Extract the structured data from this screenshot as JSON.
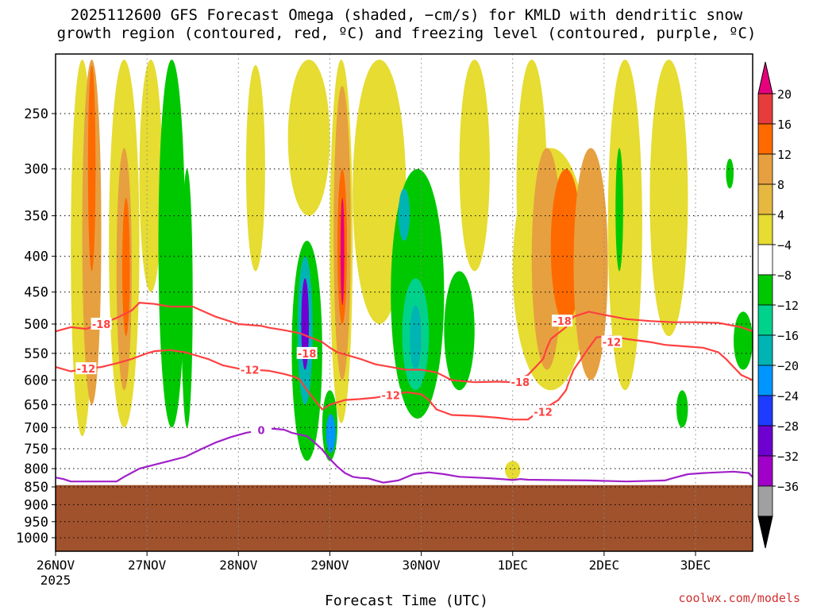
{
  "header": {
    "title_line1": "2025112600 GFS Forecast Omega (shaded, −cm/s) for KMLD with dendritic snow",
    "title_line2": "growth region (contoured, red, ºC) and freezing level (contoured, purple, ºC)"
  },
  "footer": {
    "credit": "coolwx.com/models"
  },
  "chart_data": {
    "type": "heatmap",
    "xlabel": "Forecast Time (UTC)",
    "ylabel": "",
    "xlim": [
      0,
      183
    ],
    "ylim": [
      1050,
      190
    ],
    "x_unit": "hours since 2025-11-26 00 UTC",
    "x_ticks": [
      {
        "hour": 0,
        "label": "26NOV",
        "sublabel": "2025"
      },
      {
        "hour": 24,
        "label": "27NOV"
      },
      {
        "hour": 48,
        "label": "28NOV"
      },
      {
        "hour": 72,
        "label": "29NOV"
      },
      {
        "hour": 96,
        "label": "30NOV"
      },
      {
        "hour": 120,
        "label": "1DEC"
      },
      {
        "hour": 144,
        "label": "2DEC"
      },
      {
        "hour": 168,
        "label": "3DEC"
      }
    ],
    "y_ticks": [
      250,
      300,
      350,
      400,
      450,
      500,
      550,
      600,
      650,
      700,
      750,
      800,
      850,
      900,
      950,
      1000
    ],
    "grid": true,
    "colorbar": {
      "labels": [
        "20",
        "16",
        "12",
        "8",
        "4",
        "−4",
        "−8",
        "−12",
        "−16",
        "−20",
        "−24",
        "−28",
        "−32",
        "−36"
      ],
      "colors": [
        "#e6007e",
        "#e63c3c",
        "#ff6a00",
        "#e6a040",
        "#e6b840",
        "#e6dc32",
        "#ffffff",
        "#00c800",
        "#00d28c",
        "#00b4b4",
        "#0096ff",
        "#1e3cff",
        "#6e00d2",
        "#a000c8",
        "#a0a0a0",
        "#000000"
      ]
    },
    "terrain": {
      "color": "#a0522d",
      "top_pressure": 845
    },
    "shading": [
      {
        "x": [
          4,
          10
        ],
        "p": [
          195,
          720
        ],
        "value": 6
      },
      {
        "x": [
          7,
          12
        ],
        "p": [
          195,
          650
        ],
        "value": 10
      },
      {
        "x": [
          8.5,
          10.5
        ],
        "p": [
          200,
          420
        ],
        "value": 15
      },
      {
        "x": [
          14,
          22
        ],
        "p": [
          195,
          700
        ],
        "value": 6
      },
      {
        "x": [
          16,
          20
        ],
        "p": [
          280,
          620
        ],
        "value": 10
      },
      {
        "x": [
          17.5,
          19.5
        ],
        "p": [
          330,
          520
        ],
        "value": 15
      },
      {
        "x": [
          22,
          28
        ],
        "p": [
          195,
          450
        ],
        "value": 5
      },
      {
        "x": [
          27,
          34
        ],
        "p": [
          195,
          700
        ],
        "value": -6
      },
      {
        "x": [
          33,
          36
        ],
        "p": [
          300,
          700
        ],
        "value": -6
      },
      {
        "x": [
          50,
          55
        ],
        "p": [
          200,
          420
        ],
        "value": 5
      },
      {
        "x": [
          62,
          70
        ],
        "p": [
          380,
          780
        ],
        "value": -7
      },
      {
        "x": [
          63.5,
          67.5
        ],
        "p": [
          400,
          650
        ],
        "value": -14
      },
      {
        "x": [
          64.5,
          66.5
        ],
        "p": [
          430,
          580
        ],
        "value": -24
      },
      {
        "x": [
          61,
          72
        ],
        "p": [
          195,
          350
        ],
        "value": 5
      },
      {
        "x": [
          72,
          78
        ],
        "p": [
          195,
          690
        ],
        "value": 6
      },
      {
        "x": [
          73,
          77.5
        ],
        "p": [
          220,
          600
        ],
        "value": 10
      },
      {
        "x": [
          74,
          76.5
        ],
        "p": [
          300,
          500
        ],
        "value": 15
      },
      {
        "x": [
          74.8,
          75.8
        ],
        "p": [
          330,
          470
        ],
        "value": 21
      },
      {
        "x": [
          70,
          74
        ],
        "p": [
          620,
          780
        ],
        "value": -7
      },
      {
        "x": [
          71,
          73.5
        ],
        "p": [
          670,
          760
        ],
        "value": -16
      },
      {
        "x": [
          78,
          92
        ],
        "p": [
          195,
          500
        ],
        "value": 5
      },
      {
        "x": [
          88,
          102
        ],
        "p": [
          300,
          680
        ],
        "value": -7
      },
      {
        "x": [
          91,
          98
        ],
        "p": [
          430,
          620
        ],
        "value": -11
      },
      {
        "x": [
          93,
          96
        ],
        "p": [
          470,
          580
        ],
        "value": -15
      },
      {
        "x": [
          90,
          93
        ],
        "p": [
          320,
          380
        ],
        "value": -14
      },
      {
        "x": [
          102,
          110
        ],
        "p": [
          420,
          620
        ],
        "value": -6
      },
      {
        "x": [
          106,
          114
        ],
        "p": [
          195,
          420
        ],
        "value": 5
      },
      {
        "x": [
          118,
          122
        ],
        "p": [
          780,
          830
        ],
        "value": 5
      },
      {
        "x": [
          121,
          129
        ],
        "p": [
          195,
          480
        ],
        "value": 5
      },
      {
        "x": [
          120,
          140
        ],
        "p": [
          280,
          620
        ],
        "value": 6
      },
      {
        "x": [
          125,
          133
        ],
        "p": [
          280,
          580
        ],
        "value": 10
      },
      {
        "x": [
          130,
          138
        ],
        "p": [
          300,
          500
        ],
        "value": 13
      },
      {
        "x": [
          136,
          145
        ],
        "p": [
          280,
          600
        ],
        "value": 10
      },
      {
        "x": [
          145,
          154
        ],
        "p": [
          195,
          620
        ],
        "value": 5
      },
      {
        "x": [
          147,
          149
        ],
        "p": [
          280,
          420
        ],
        "value": -6
      },
      {
        "x": [
          156,
          166
        ],
        "p": [
          195,
          520
        ],
        "value": 5
      },
      {
        "x": [
          163,
          166
        ],
        "p": [
          620,
          700
        ],
        "value": -6
      },
      {
        "x": [
          176,
          178
        ],
        "p": [
          290,
          320
        ],
        "value": -6
      },
      {
        "x": [
          178,
          183
        ],
        "p": [
          480,
          580
        ],
        "value": -6
      }
    ],
    "contours": [
      {
        "name": "-18",
        "color": "#ff4040",
        "points": [
          [
            0,
            512
          ],
          [
            4,
            505
          ],
          [
            8,
            508
          ],
          [
            12,
            500
          ],
          [
            16,
            490
          ],
          [
            20,
            478
          ],
          [
            22,
            466
          ],
          [
            26,
            468
          ],
          [
            30,
            472
          ],
          [
            36,
            472
          ],
          [
            42,
            488
          ],
          [
            48,
            500
          ],
          [
            54,
            503
          ],
          [
            56,
            506
          ],
          [
            60,
            510
          ],
          [
            64,
            515
          ],
          [
            66,
            520
          ],
          [
            70,
            530
          ],
          [
            72,
            540
          ],
          [
            74,
            548
          ],
          [
            80,
            560
          ],
          [
            84,
            570
          ],
          [
            88,
            575
          ],
          [
            92,
            580
          ],
          [
            96,
            580
          ],
          [
            100,
            585
          ],
          [
            104,
            600
          ],
          [
            110,
            604
          ],
          [
            116,
            603
          ],
          [
            120,
            604
          ],
          [
            124,
            590
          ],
          [
            126,
            575
          ],
          [
            128,
            560
          ],
          [
            129,
            540
          ],
          [
            130,
            525
          ],
          [
            132,
            515
          ],
          [
            134,
            505
          ],
          [
            136,
            488
          ],
          [
            140,
            480
          ],
          [
            144,
            485
          ],
          [
            150,
            492
          ],
          [
            156,
            495
          ],
          [
            162,
            497
          ],
          [
            168,
            497
          ],
          [
            174,
            498
          ],
          [
            180,
            505
          ],
          [
            183,
            512
          ]
        ],
        "labels": [
          [
            12,
            500
          ],
          [
            133,
            495
          ],
          [
            66,
            550
          ],
          [
            122,
            604
          ]
        ]
      },
      {
        "name": "-12",
        "color": "#ff4040",
        "points": [
          [
            0,
            575
          ],
          [
            4,
            583
          ],
          [
            8,
            578
          ],
          [
            12,
            575
          ],
          [
            16,
            568
          ],
          [
            20,
            560
          ],
          [
            24,
            550
          ],
          [
            26,
            546
          ],
          [
            30,
            544
          ],
          [
            34,
            548
          ],
          [
            40,
            560
          ],
          [
            44,
            572
          ],
          [
            48,
            578
          ],
          [
            52,
            580
          ],
          [
            56,
            582
          ],
          [
            60,
            588
          ],
          [
            62,
            592
          ],
          [
            64,
            598
          ],
          [
            66,
            620
          ],
          [
            68,
            640
          ],
          [
            70,
            660
          ],
          [
            72,
            650
          ],
          [
            76,
            640
          ],
          [
            80,
            638
          ],
          [
            84,
            635
          ],
          [
            88,
            630
          ],
          [
            92,
            624
          ],
          [
            96,
            628
          ],
          [
            98,
            640
          ],
          [
            100,
            660
          ],
          [
            104,
            672
          ],
          [
            110,
            674
          ],
          [
            116,
            678
          ],
          [
            120,
            682
          ],
          [
            124,
            682
          ],
          [
            126,
            670
          ],
          [
            128,
            655
          ],
          [
            130,
            650
          ],
          [
            132,
            640
          ],
          [
            134,
            620
          ],
          [
            135,
            598
          ],
          [
            136,
            580
          ],
          [
            138,
            560
          ],
          [
            140,
            540
          ],
          [
            142,
            522
          ],
          [
            146,
            520
          ],
          [
            150,
            525
          ],
          [
            156,
            530
          ],
          [
            160,
            535
          ],
          [
            164,
            537
          ],
          [
            170,
            540
          ],
          [
            174,
            548
          ],
          [
            176,
            560
          ],
          [
            178,
            575
          ],
          [
            180,
            590
          ],
          [
            183,
            600
          ]
        ],
        "labels": [
          [
            8,
            578
          ],
          [
            51,
            580
          ],
          [
            88,
            630
          ],
          [
            128,
            665
          ],
          [
            146,
            530
          ]
        ]
      },
      {
        "name": "0",
        "color": "#a020c8",
        "points": [
          [
            0,
            824
          ],
          [
            2,
            828
          ],
          [
            4,
            835
          ],
          [
            16,
            835
          ],
          [
            18,
            822
          ],
          [
            22,
            800
          ],
          [
            26,
            790
          ],
          [
            30,
            780
          ],
          [
            34,
            770
          ],
          [
            38,
            752
          ],
          [
            42,
            735
          ],
          [
            46,
            722
          ],
          [
            50,
            712
          ],
          [
            54,
            706
          ],
          [
            56,
            702
          ],
          [
            60,
            705
          ],
          [
            62,
            712
          ],
          [
            66,
            720
          ],
          [
            68,
            735
          ],
          [
            70,
            752
          ],
          [
            72,
            775
          ],
          [
            74,
            795
          ],
          [
            76,
            812
          ],
          [
            78,
            822
          ],
          [
            80,
            825
          ],
          [
            82,
            826
          ],
          [
            84,
            832
          ],
          [
            86,
            838
          ],
          [
            90,
            832
          ],
          [
            94,
            815
          ],
          [
            98,
            810
          ],
          [
            102,
            815
          ],
          [
            106,
            822
          ],
          [
            110,
            824
          ],
          [
            114,
            826
          ],
          [
            118,
            829
          ],
          [
            120,
            831
          ],
          [
            122,
            828
          ],
          [
            124,
            830
          ],
          [
            130,
            831
          ],
          [
            140,
            832
          ],
          [
            150,
            835
          ],
          [
            160,
            832
          ],
          [
            162,
            826
          ],
          [
            166,
            815
          ],
          [
            170,
            812
          ],
          [
            174,
            810
          ],
          [
            178,
            808
          ],
          [
            182,
            812
          ],
          [
            183,
            823
          ]
        ],
        "labels": [
          [
            54,
            706
          ]
        ]
      }
    ]
  }
}
